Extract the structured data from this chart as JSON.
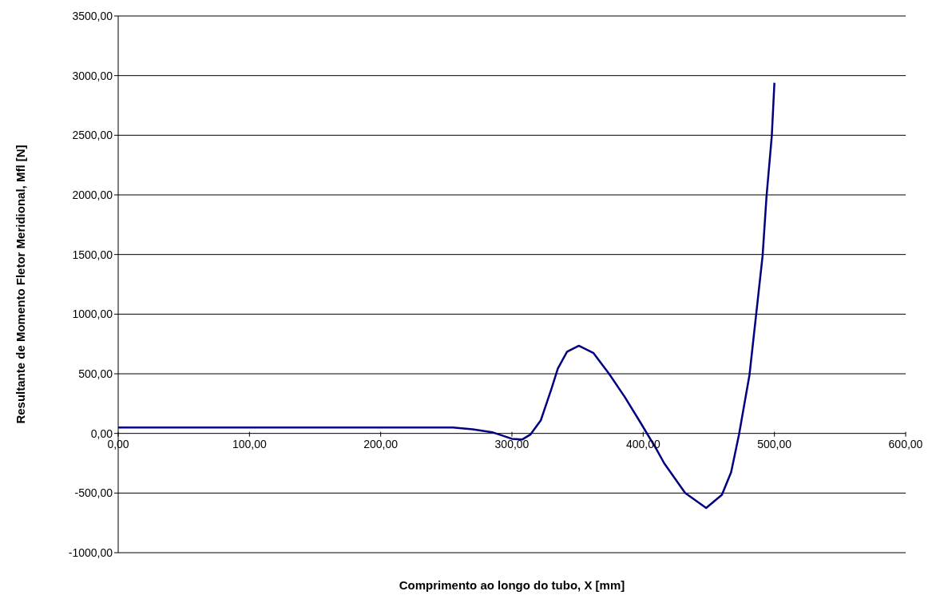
{
  "chart_data": {
    "type": "line",
    "xlabel": "Comprimento ao longo do tubo, X [mm]",
    "ylabel": "Resultante de Momento Fletor Meridional, Mfl [N]",
    "series": [
      {
        "color": "#000080",
        "x": [
          0,
          50,
          100,
          150,
          200,
          250,
          255,
          270,
          285,
          300,
          308,
          314,
          322,
          330,
          335,
          342,
          351,
          362,
          374,
          386,
          398,
          410,
          416,
          432,
          448,
          460,
          467,
          473,
          481,
          486,
          491,
          494,
          498,
          500
        ],
        "values": [
          50,
          50,
          50,
          50,
          50,
          50,
          50,
          35,
          10,
          -45,
          -50,
          -10,
          110,
          370,
          545,
          685,
          735,
          675,
          500,
          305,
          90,
          -130,
          -250,
          -500,
          -625,
          -515,
          -325,
          -10,
          490,
          990,
          1490,
          1990,
          2495,
          2940
        ]
      }
    ],
    "xlim": [
      0,
      600
    ],
    "xticks": [
      {
        "value": 0,
        "label": "0,00"
      },
      {
        "value": 100,
        "label": "100,00"
      },
      {
        "value": 200,
        "label": "200,00"
      },
      {
        "value": 300,
        "label": "300,00"
      },
      {
        "value": 400,
        "label": "400,00"
      },
      {
        "value": 500,
        "label": "500,00"
      },
      {
        "value": 600,
        "label": "600,00"
      }
    ],
    "ylim": [
      -1000,
      3500
    ],
    "yticks": [
      {
        "value": -1000,
        "label": "-1000,00"
      },
      {
        "value": -500,
        "label": "-500,00"
      },
      {
        "value": 0,
        "label": "0,00"
      },
      {
        "value": 500,
        "label": "500,00"
      },
      {
        "value": 1000,
        "label": "1000,00"
      },
      {
        "value": 1500,
        "label": "1500,00"
      },
      {
        "value": 2000,
        "label": "2000,00"
      },
      {
        "value": 2500,
        "label": "2500,00"
      },
      {
        "value": 3000,
        "label": "3000,00"
      },
      {
        "value": 3500,
        "label": "3500,00"
      }
    ],
    "grid": "y",
    "marker": "none",
    "line_style": "solid",
    "legend": false
  }
}
